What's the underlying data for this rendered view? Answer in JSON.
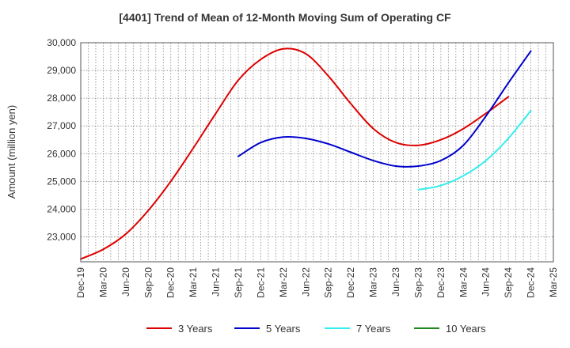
{
  "chart_data": {
    "type": "line",
    "title": "[4401]  Trend of Mean of 12-Month Moving Sum of Operating CF",
    "xlabel": "",
    "ylabel": "Amount (million yen)",
    "ylim": [
      22100,
      30000
    ],
    "yticks": [
      23000,
      24000,
      25000,
      26000,
      27000,
      28000,
      29000,
      30000
    ],
    "ytick_labels": [
      "23,000",
      "24,000",
      "25,000",
      "26,000",
      "27,000",
      "28,000",
      "29,000",
      "30,000"
    ],
    "x_labels": [
      "Dec-19",
      "Mar-20",
      "Jun-20",
      "Sep-20",
      "Dec-20",
      "Mar-21",
      "Jun-21",
      "Sep-21",
      "Dec-21",
      "Mar-22",
      "Jun-22",
      "Sep-22",
      "Dec-22",
      "Mar-23",
      "Jun-23",
      "Sep-23",
      "Dec-23",
      "Mar-24",
      "Jun-24",
      "Sep-24",
      "Dec-24",
      "Mar-25"
    ],
    "grid": true,
    "legend_position": "bottom",
    "series": [
      {
        "name": "3 Years",
        "color": "#dd0000",
        "start_index": 0,
        "values": [
          22200,
          22550,
          23100,
          23950,
          25000,
          26200,
          27450,
          28650,
          29400,
          29780,
          29600,
          28800,
          27800,
          26900,
          26400,
          26300,
          26500,
          26900,
          27450,
          28050
        ]
      },
      {
        "name": "5 Years",
        "color": "#0000cc",
        "start_index": 7,
        "values": [
          25900,
          26400,
          26600,
          26550,
          26350,
          26050,
          25750,
          25550,
          25550,
          25750,
          26300,
          27350,
          28550,
          29700
        ]
      },
      {
        "name": "7 Years",
        "color": "#33eeee",
        "start_index": 15,
        "values": [
          24700,
          24850,
          25200,
          25750,
          26550,
          27550
        ]
      },
      {
        "name": "10 Years",
        "color": "#228822",
        "start_index": 0,
        "values": []
      }
    ]
  }
}
